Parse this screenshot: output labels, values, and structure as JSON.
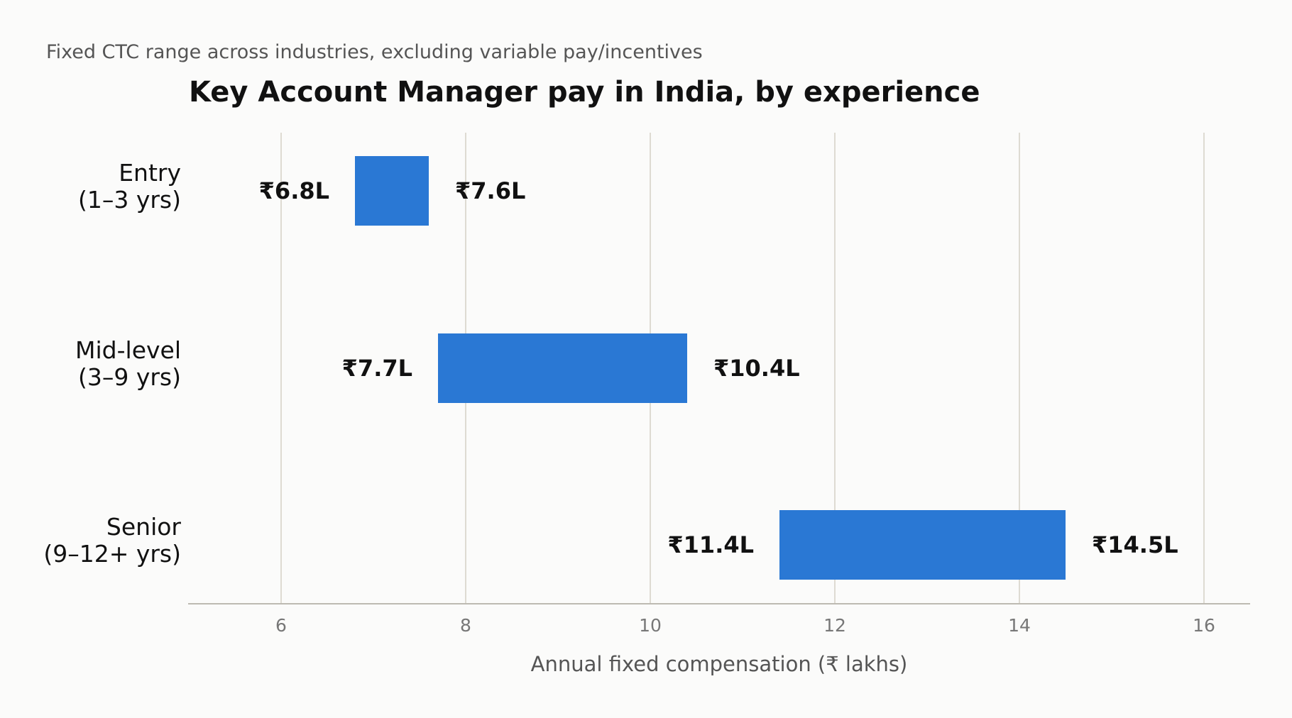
{
  "chart_data": {
    "type": "bar",
    "orientation": "horizontal",
    "subtitle": "Fixed CTC range across industries, excluding variable pay/incentives",
    "title": "Key Account Manager pay in India, by experience",
    "xlabel": "Annual fixed compensation (₹ lakhs)",
    "ylabel": "",
    "xlim": [
      5,
      16.5
    ],
    "xticks": [
      6,
      8,
      10,
      12,
      14,
      16
    ],
    "grid": true,
    "color": "#2a78d4",
    "categories": [
      {
        "line1": "Entry",
        "line2": "(1–3 yrs)",
        "min": 6.8,
        "max": 7.6,
        "min_label": "₹6.8L",
        "max_label": "₹7.6L"
      },
      {
        "line1": "Mid-level",
        "line2": "(3–9 yrs)",
        "min": 7.7,
        "max": 10.4,
        "min_label": "₹7.7L",
        "max_label": "₹10.4L"
      },
      {
        "line1": "Senior",
        "line2": "(9–12+ yrs)",
        "min": 11.4,
        "max": 14.5,
        "min_label": "₹11.4L",
        "max_label": "₹14.5L"
      }
    ]
  }
}
